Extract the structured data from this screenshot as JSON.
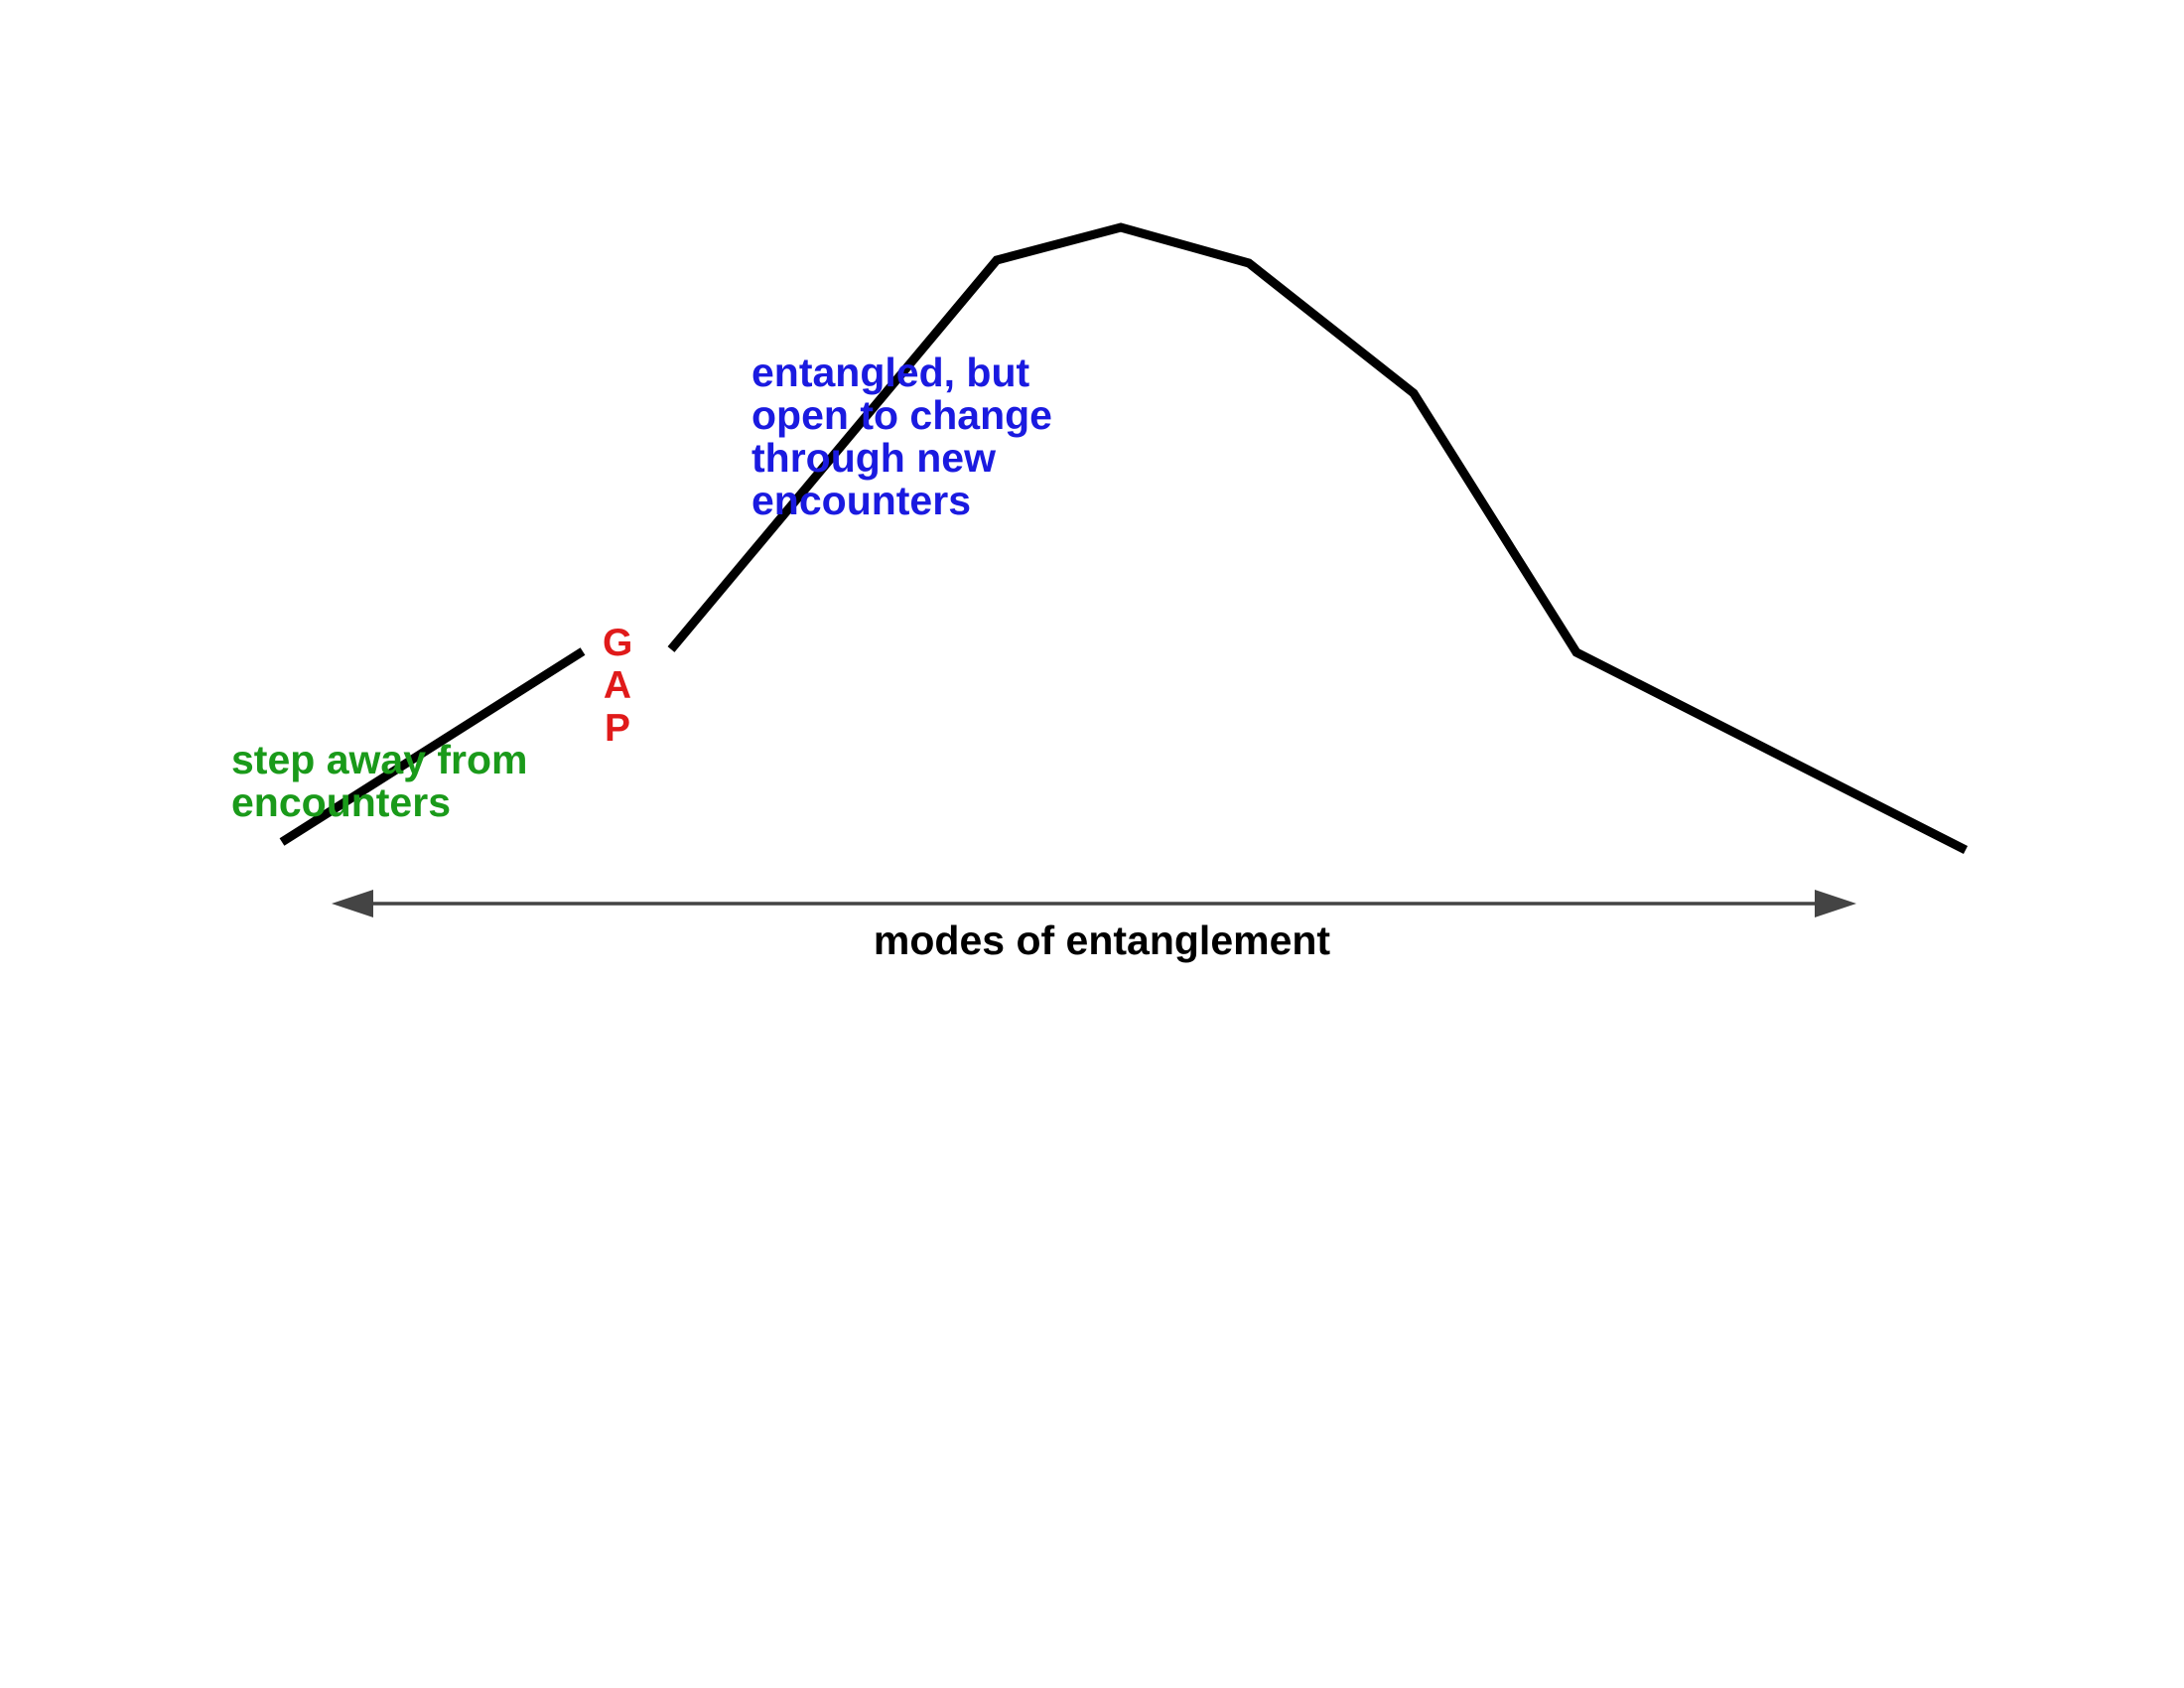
{
  "diagram": {
    "colors": {
      "curve": "#000000",
      "axis": "#444444",
      "step_away": "#1a9a1a",
      "entangled": "#1a1ae0",
      "gap": "#e01a1a",
      "axis_label": "#000000"
    },
    "labels": {
      "step_away": "step away from\nencounters",
      "entangled": "entangled, but\nopen to change\nthrough new\nencounters",
      "gap_letters": [
        "G",
        "A",
        "P"
      ]
    },
    "axis": {
      "label": "modes of entanglement",
      "direction": "bidirectional"
    }
  }
}
